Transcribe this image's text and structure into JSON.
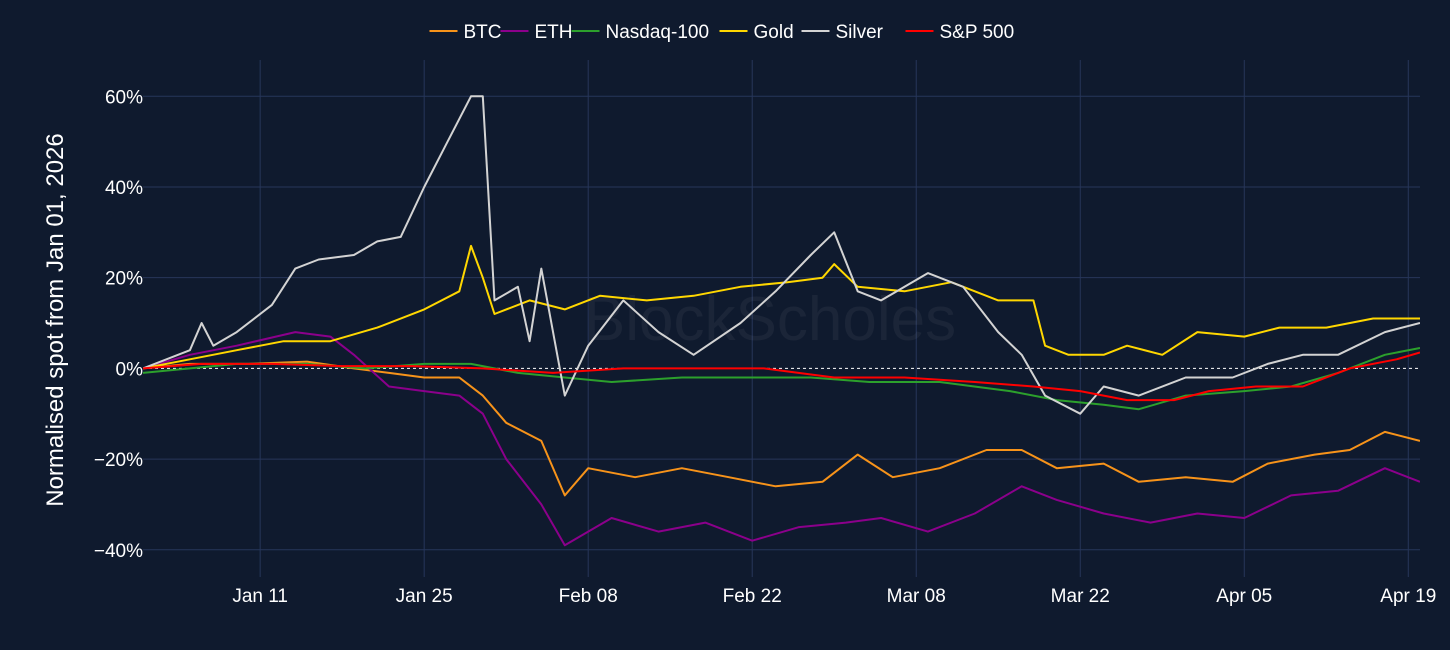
{
  "chart_data": {
    "type": "line",
    "title": "",
    "xlabel": "",
    "ylabel": "Normalised spot from Jan 01, 2026",
    "watermark": "BlockScholes",
    "x_range": [
      "2026-01-01",
      "2026-04-20"
    ],
    "x_ticks": [
      {
        "date": "2026-01-11",
        "label": "Jan 11"
      },
      {
        "date": "2026-01-25",
        "label": "Jan 25"
      },
      {
        "date": "2026-02-08",
        "label": "Feb 08"
      },
      {
        "date": "2026-02-22",
        "label": "Feb 22"
      },
      {
        "date": "2026-03-08",
        "label": "Mar 08"
      },
      {
        "date": "2026-03-22",
        "label": "Mar 22"
      },
      {
        "date": "2026-04-05",
        "label": "Apr 05"
      },
      {
        "date": "2026-04-19",
        "label": "Apr 19"
      }
    ],
    "ylim": [
      -46,
      68
    ],
    "y_ticks": [
      {
        "value": 60,
        "label": "60%"
      },
      {
        "value": 40,
        "label": "40%"
      },
      {
        "value": 20,
        "label": "20%"
      },
      {
        "value": 0,
        "label": "0%"
      },
      {
        "value": -20,
        "label": "−20%"
      },
      {
        "value": -40,
        "label": "−40%"
      }
    ],
    "grid": true,
    "zero_line": "dotted",
    "legend_position": "top-center",
    "series": [
      {
        "name": "BTC",
        "color": "#f7931a",
        "points": [
          [
            "2026-01-01",
            0
          ],
          [
            "2026-01-05",
            1
          ],
          [
            "2026-01-10",
            1
          ],
          [
            "2026-01-15",
            1.5
          ],
          [
            "2026-01-19",
            0
          ],
          [
            "2026-01-22",
            -1
          ],
          [
            "2026-01-25",
            -2
          ],
          [
            "2026-01-28",
            -2
          ],
          [
            "2026-01-30",
            -6
          ],
          [
            "2026-02-01",
            -12
          ],
          [
            "2026-02-04",
            -16
          ],
          [
            "2026-02-06",
            -28
          ],
          [
            "2026-02-08",
            -22
          ],
          [
            "2026-02-12",
            -24
          ],
          [
            "2026-02-16",
            -22
          ],
          [
            "2026-02-20",
            -24
          ],
          [
            "2026-02-24",
            -26
          ],
          [
            "2026-02-28",
            -25
          ],
          [
            "2026-03-03",
            -19
          ],
          [
            "2026-03-06",
            -24
          ],
          [
            "2026-03-10",
            -22
          ],
          [
            "2026-03-14",
            -18
          ],
          [
            "2026-03-17",
            -18
          ],
          [
            "2026-03-20",
            -22
          ],
          [
            "2026-03-24",
            -21
          ],
          [
            "2026-03-27",
            -25
          ],
          [
            "2026-03-31",
            -24
          ],
          [
            "2026-04-04",
            -25
          ],
          [
            "2026-04-07",
            -21
          ],
          [
            "2026-04-11",
            -19
          ],
          [
            "2026-04-14",
            -18
          ],
          [
            "2026-04-17",
            -14
          ],
          [
            "2026-04-20",
            -16
          ]
        ]
      },
      {
        "name": "ETH",
        "color": "#8b008b",
        "points": [
          [
            "2026-01-01",
            0
          ],
          [
            "2026-01-05",
            3
          ],
          [
            "2026-01-09",
            5
          ],
          [
            "2026-01-14",
            8
          ],
          [
            "2026-01-17",
            7
          ],
          [
            "2026-01-19",
            3
          ],
          [
            "2026-01-22",
            -4
          ],
          [
            "2026-01-25",
            -5
          ],
          [
            "2026-01-28",
            -6
          ],
          [
            "2026-01-30",
            -10
          ],
          [
            "2026-02-01",
            -20
          ],
          [
            "2026-02-04",
            -30
          ],
          [
            "2026-02-06",
            -39
          ],
          [
            "2026-02-10",
            -33
          ],
          [
            "2026-02-14",
            -36
          ],
          [
            "2026-02-18",
            -34
          ],
          [
            "2026-02-22",
            -38
          ],
          [
            "2026-02-26",
            -35
          ],
          [
            "2026-03-02",
            -34
          ],
          [
            "2026-03-05",
            -33
          ],
          [
            "2026-03-09",
            -36
          ],
          [
            "2026-03-13",
            -32
          ],
          [
            "2026-03-17",
            -26
          ],
          [
            "2026-03-20",
            -29
          ],
          [
            "2026-03-24",
            -32
          ],
          [
            "2026-03-28",
            -34
          ],
          [
            "2026-04-01",
            -32
          ],
          [
            "2026-04-05",
            -33
          ],
          [
            "2026-04-09",
            -28
          ],
          [
            "2026-04-13",
            -27
          ],
          [
            "2026-04-17",
            -22
          ],
          [
            "2026-04-20",
            -25
          ]
        ]
      },
      {
        "name": "Nasdaq-100",
        "color": "#2ca02c",
        "points": [
          [
            "2026-01-01",
            -1
          ],
          [
            "2026-01-05",
            0
          ],
          [
            "2026-01-09",
            1
          ],
          [
            "2026-01-15",
            1
          ],
          [
            "2026-01-20",
            0
          ],
          [
            "2026-01-25",
            1
          ],
          [
            "2026-01-29",
            1
          ],
          [
            "2026-02-02",
            -1
          ],
          [
            "2026-02-06",
            -2
          ],
          [
            "2026-02-10",
            -3
          ],
          [
            "2026-02-16",
            -2
          ],
          [
            "2026-02-22",
            -2
          ],
          [
            "2026-02-27",
            -2
          ],
          [
            "2026-03-04",
            -3
          ],
          [
            "2026-03-10",
            -3
          ],
          [
            "2026-03-16",
            -5
          ],
          [
            "2026-03-20",
            -7
          ],
          [
            "2026-03-24",
            -8
          ],
          [
            "2026-03-27",
            -9
          ],
          [
            "2026-03-31",
            -6
          ],
          [
            "2026-04-05",
            -5
          ],
          [
            "2026-04-09",
            -4
          ],
          [
            "2026-04-13",
            -1
          ],
          [
            "2026-04-17",
            3
          ],
          [
            "2026-04-20",
            4.5
          ]
        ]
      },
      {
        "name": "Gold",
        "color": "#ffd700",
        "points": [
          [
            "2026-01-01",
            0
          ],
          [
            "2026-01-05",
            2
          ],
          [
            "2026-01-09",
            4
          ],
          [
            "2026-01-13",
            6
          ],
          [
            "2026-01-17",
            6
          ],
          [
            "2026-01-21",
            9
          ],
          [
            "2026-01-25",
            13
          ],
          [
            "2026-01-28",
            17
          ],
          [
            "2026-01-29",
            27
          ],
          [
            "2026-01-30",
            20
          ],
          [
            "2026-01-31",
            12
          ],
          [
            "2026-02-03",
            15
          ],
          [
            "2026-02-06",
            13
          ],
          [
            "2026-02-09",
            16
          ],
          [
            "2026-02-13",
            15
          ],
          [
            "2026-02-17",
            16
          ],
          [
            "2026-02-21",
            18
          ],
          [
            "2026-02-25",
            19
          ],
          [
            "2026-02-28",
            20
          ],
          [
            "2026-03-01",
            23
          ],
          [
            "2026-03-03",
            18
          ],
          [
            "2026-03-07",
            17
          ],
          [
            "2026-03-11",
            19
          ],
          [
            "2026-03-15",
            15
          ],
          [
            "2026-03-18",
            15
          ],
          [
            "2026-03-19",
            5
          ],
          [
            "2026-03-21",
            3
          ],
          [
            "2026-03-24",
            3
          ],
          [
            "2026-03-26",
            5
          ],
          [
            "2026-03-29",
            3
          ],
          [
            "2026-04-01",
            8
          ],
          [
            "2026-04-05",
            7
          ],
          [
            "2026-04-08",
            9
          ],
          [
            "2026-04-12",
            9
          ],
          [
            "2026-04-16",
            11
          ],
          [
            "2026-04-20",
            11
          ]
        ]
      },
      {
        "name": "Silver",
        "color": "#d3d3d3",
        "points": [
          [
            "2026-01-01",
            0
          ],
          [
            "2026-01-05",
            4
          ],
          [
            "2026-01-06",
            10
          ],
          [
            "2026-01-07",
            5
          ],
          [
            "2026-01-09",
            8
          ],
          [
            "2026-01-12",
            14
          ],
          [
            "2026-01-14",
            22
          ],
          [
            "2026-01-16",
            24
          ],
          [
            "2026-01-19",
            25
          ],
          [
            "2026-01-21",
            28
          ],
          [
            "2026-01-23",
            29
          ],
          [
            "2026-01-25",
            40
          ],
          [
            "2026-01-27",
            50
          ],
          [
            "2026-01-29",
            60
          ],
          [
            "2026-01-30",
            60
          ],
          [
            "2026-01-31",
            15
          ],
          [
            "2026-02-02",
            18
          ],
          [
            "2026-02-03",
            6
          ],
          [
            "2026-02-04",
            22
          ],
          [
            "2026-02-06",
            -6
          ],
          [
            "2026-02-08",
            5
          ],
          [
            "2026-02-11",
            15
          ],
          [
            "2026-02-14",
            8
          ],
          [
            "2026-02-17",
            3
          ],
          [
            "2026-02-21",
            10
          ],
          [
            "2026-02-24",
            17
          ],
          [
            "2026-02-27",
            25
          ],
          [
            "2026-03-01",
            30
          ],
          [
            "2026-03-03",
            17
          ],
          [
            "2026-03-05",
            15
          ],
          [
            "2026-03-09",
            21
          ],
          [
            "2026-03-12",
            18
          ],
          [
            "2026-03-15",
            8
          ],
          [
            "2026-03-17",
            3
          ],
          [
            "2026-03-19",
            -6
          ],
          [
            "2026-03-22",
            -10
          ],
          [
            "2026-03-24",
            -4
          ],
          [
            "2026-03-27",
            -6
          ],
          [
            "2026-03-31",
            -2
          ],
          [
            "2026-04-04",
            -2
          ],
          [
            "2026-04-07",
            1
          ],
          [
            "2026-04-10",
            3
          ],
          [
            "2026-04-13",
            3
          ],
          [
            "2026-04-17",
            8
          ],
          [
            "2026-04-20",
            10
          ]
        ]
      },
      {
        "name": "S&P 500",
        "color": "#ff0000",
        "points": [
          [
            "2026-01-01",
            0
          ],
          [
            "2026-01-06",
            1
          ],
          [
            "2026-01-12",
            1
          ],
          [
            "2026-01-18",
            0.5
          ],
          [
            "2026-01-24",
            0.5
          ],
          [
            "2026-01-30",
            0
          ],
          [
            "2026-02-05",
            -1
          ],
          [
            "2026-02-11",
            0
          ],
          [
            "2026-02-17",
            0
          ],
          [
            "2026-02-23",
            0
          ],
          [
            "2026-03-01",
            -2
          ],
          [
            "2026-03-07",
            -2
          ],
          [
            "2026-03-13",
            -3
          ],
          [
            "2026-03-18",
            -4
          ],
          [
            "2026-03-22",
            -5
          ],
          [
            "2026-03-26",
            -7
          ],
          [
            "2026-03-30",
            -7
          ],
          [
            "2026-04-02",
            -5
          ],
          [
            "2026-04-06",
            -4
          ],
          [
            "2026-04-10",
            -4
          ],
          [
            "2026-04-14",
            0
          ],
          [
            "2026-04-18",
            2
          ],
          [
            "2026-04-20",
            3.5
          ]
        ]
      }
    ]
  }
}
